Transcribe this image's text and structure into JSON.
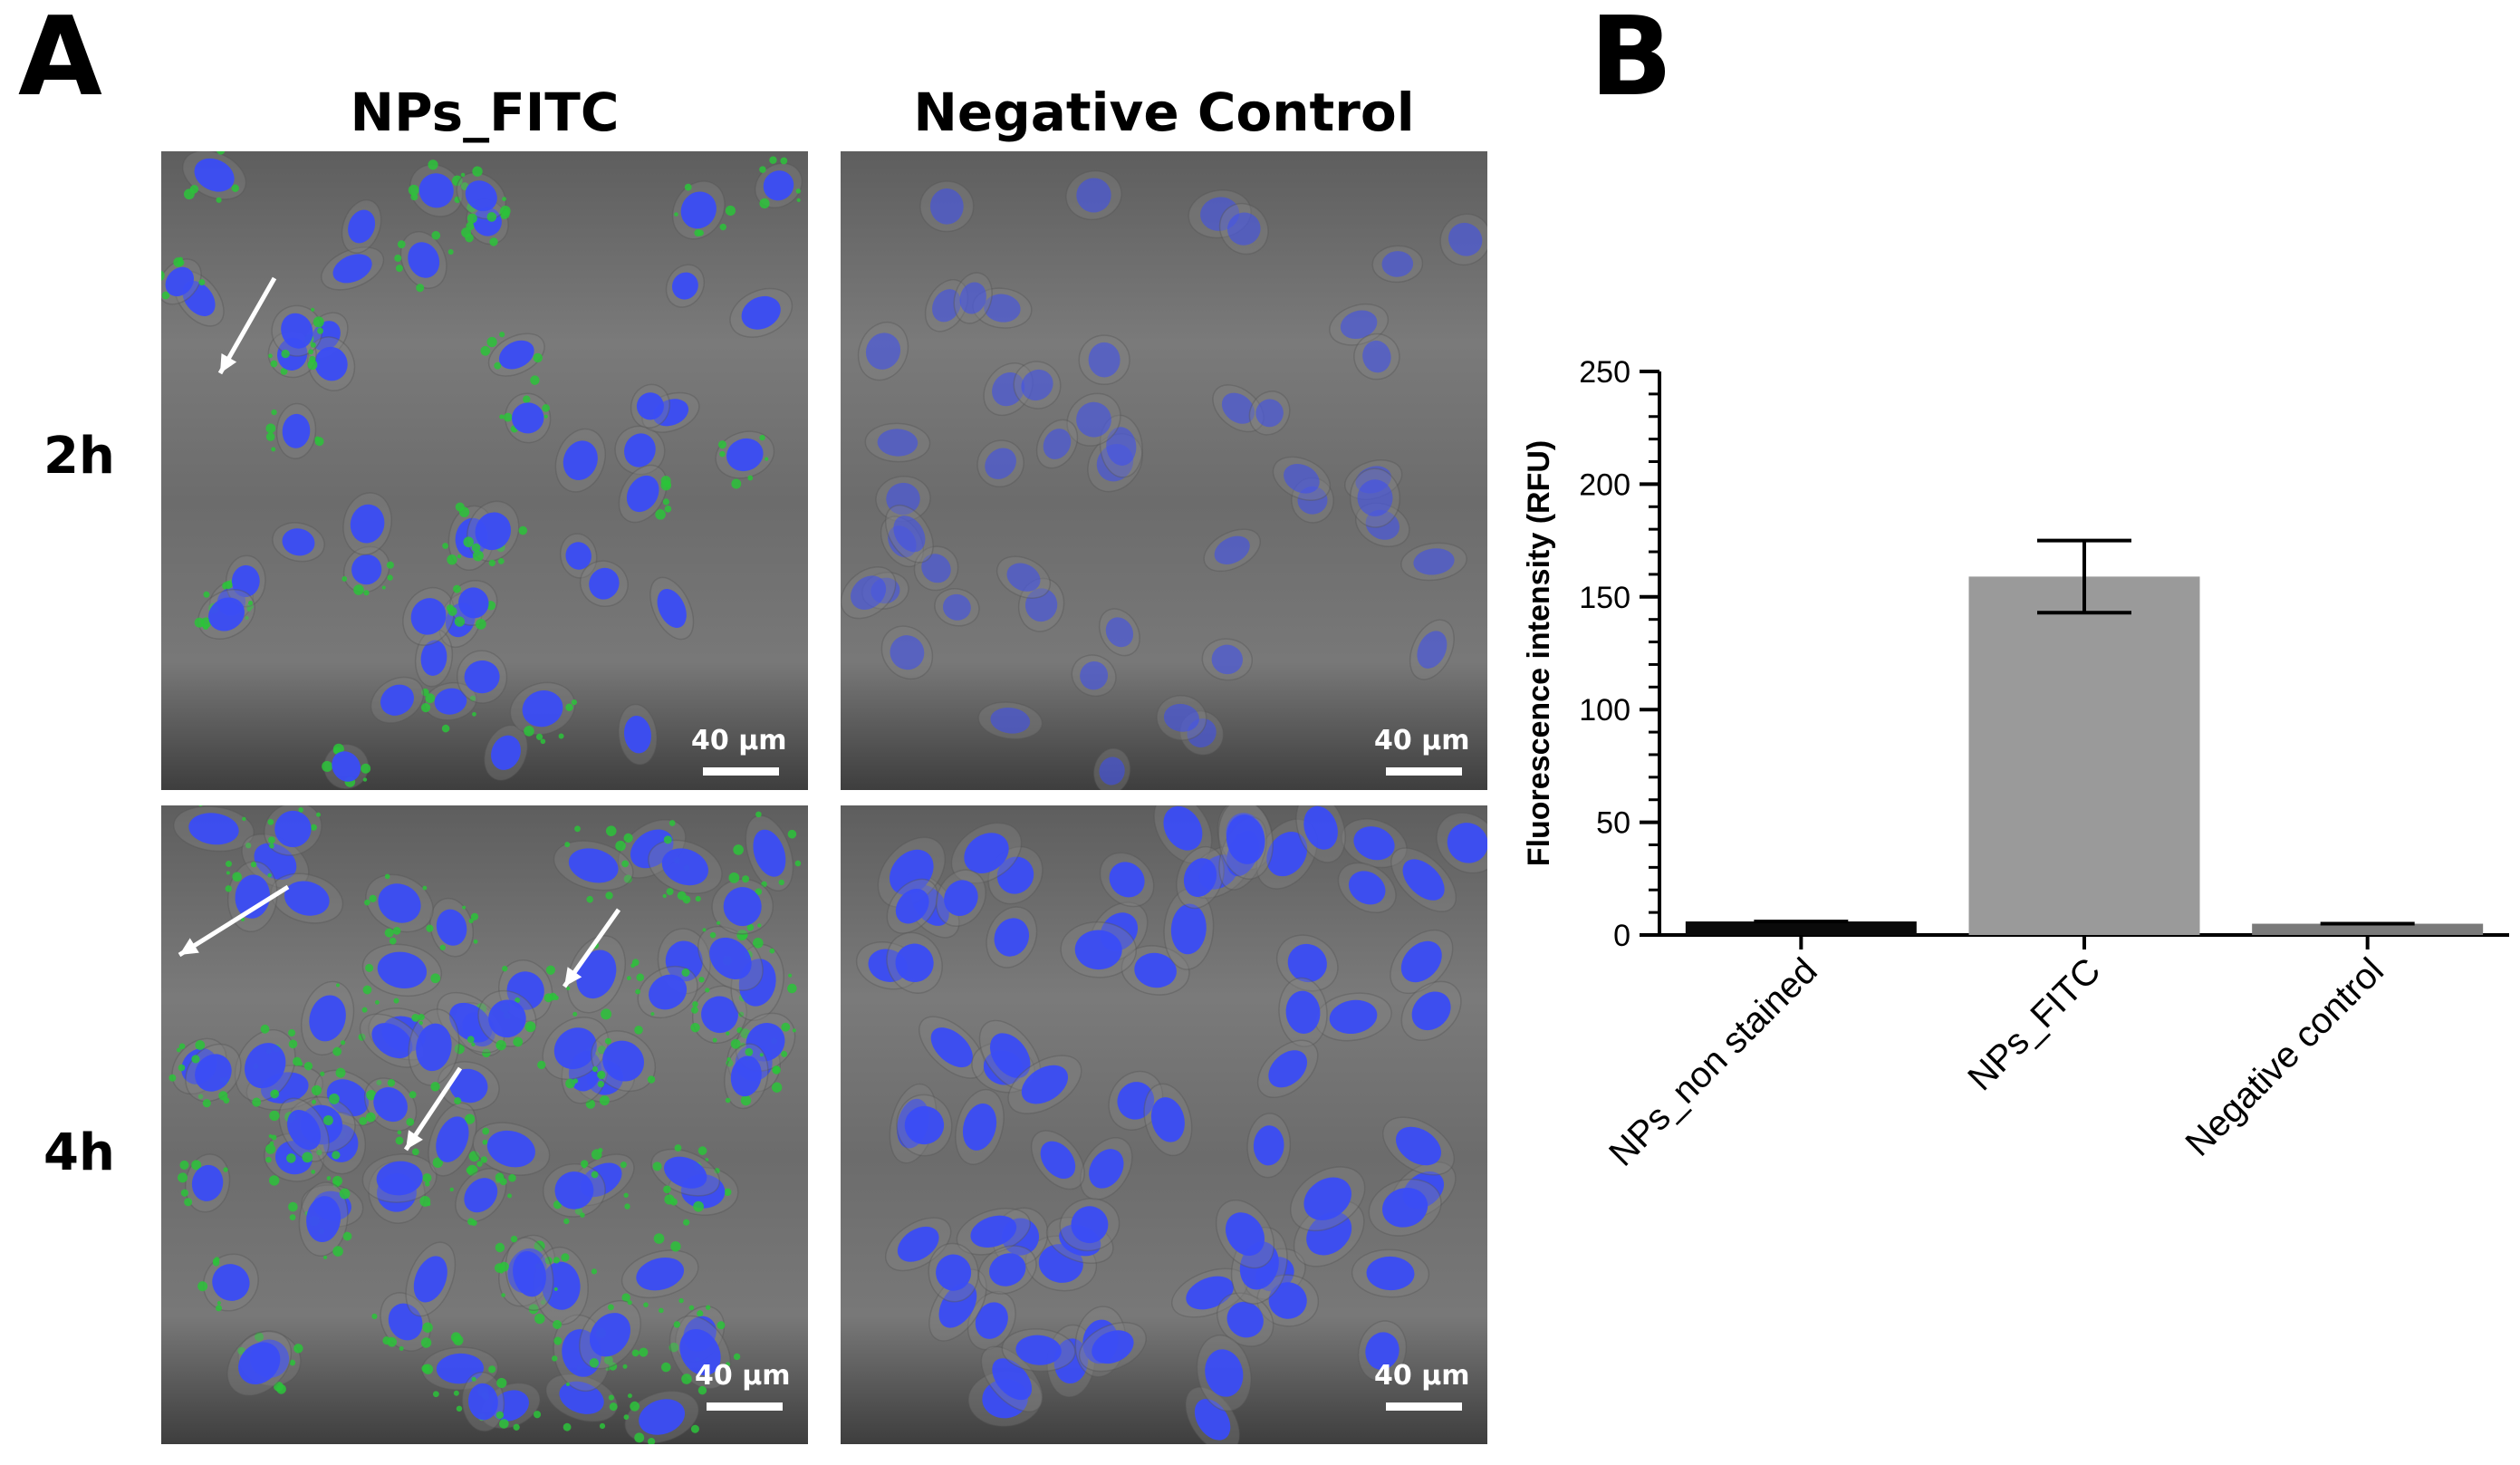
{
  "panels": {
    "a_letter": "A",
    "b_letter": "B"
  },
  "microscopy": {
    "column_titles": [
      "NPs_FITC",
      "Negative Control"
    ],
    "row_labels": [
      "2h",
      "4h"
    ],
    "scale_label": "40 µm",
    "colors": {
      "nucleus": "#3a4cf5",
      "fitc": "#2cc33a",
      "arrow": "#ffffff",
      "background": "#6a6a6a"
    }
  },
  "chart_data": {
    "type": "bar",
    "categories": [
      "NPs_non stained",
      "NPs_FITC",
      "Negative control"
    ],
    "values": [
      6,
      159,
      5
    ],
    "errors": [
      0,
      16,
      0
    ],
    "bar_colors": [
      "#0a0a0a",
      "#9a9a9a",
      "#7a7a7a"
    ],
    "title": "",
    "xlabel": "",
    "ylabel": "Fluorescence intensity (RFU)",
    "ylim": [
      0,
      250
    ],
    "yticks": [
      0,
      50,
      100,
      150,
      200,
      250
    ],
    "grid": false,
    "legend": "none"
  }
}
